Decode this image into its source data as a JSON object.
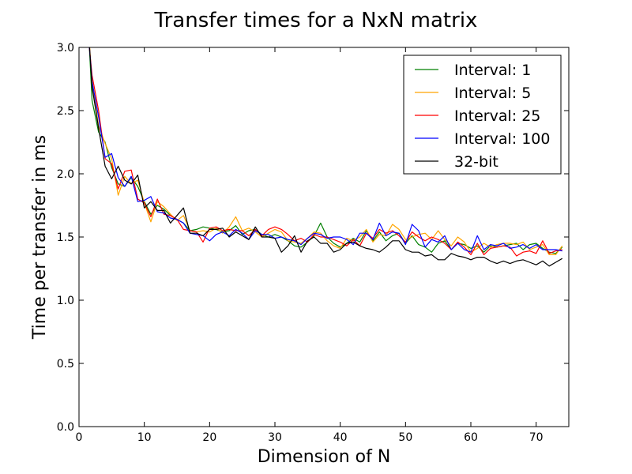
{
  "chart_data": {
    "type": "line",
    "title": "Transfer times for a NxN matrix",
    "xlabel": "Dimension of N",
    "ylabel": "Time per transfer in ms",
    "xlim": [
      0,
      75
    ],
    "ylim": [
      0.0,
      3.0
    ],
    "xticks": [
      "0",
      "10",
      "20",
      "30",
      "40",
      "50",
      "60",
      "70"
    ],
    "xtick_values": [
      0,
      10,
      20,
      30,
      40,
      50,
      60,
      70
    ],
    "yticks": [
      "0.0",
      "0.5",
      "1.0",
      "1.5",
      "2.0",
      "2.5",
      "3.0"
    ],
    "ytick_values": [
      0.0,
      0.5,
      1.0,
      1.5,
      2.0,
      2.5,
      3.0
    ],
    "grid": false,
    "legend_position": "top-right",
    "x": [
      1,
      2,
      3,
      4,
      5,
      6,
      7,
      8,
      9,
      10,
      11,
      12,
      13,
      14,
      15,
      16,
      17,
      18,
      19,
      20,
      21,
      22,
      23,
      24,
      25,
      26,
      27,
      28,
      29,
      30,
      31,
      32,
      33,
      34,
      35,
      36,
      37,
      38,
      39,
      40,
      41,
      42,
      43,
      44,
      45,
      46,
      47,
      48,
      49,
      50,
      51,
      52,
      53,
      54,
      55,
      56,
      57,
      58,
      59,
      60,
      61,
      62,
      63,
      64,
      65,
      66,
      67,
      68,
      69,
      70,
      71,
      72,
      73,
      74
    ],
    "series": [
      {
        "name": "Interval: 1",
        "color": "#008000",
        "values": [
          3.6,
          2.58,
          2.33,
          2.25,
          2.05,
          1.92,
          1.9,
          1.97,
          1.9,
          1.78,
          1.68,
          1.75,
          1.72,
          1.67,
          1.64,
          1.61,
          1.55,
          1.56,
          1.58,
          1.57,
          1.56,
          1.54,
          1.55,
          1.59,
          1.52,
          1.55,
          1.56,
          1.52,
          1.5,
          1.52,
          1.5,
          1.47,
          1.43,
          1.42,
          1.46,
          1.51,
          1.61,
          1.5,
          1.45,
          1.42,
          1.45,
          1.49,
          1.46,
          1.55,
          1.47,
          1.54,
          1.47,
          1.51,
          1.53,
          1.45,
          1.51,
          1.44,
          1.42,
          1.38,
          1.45,
          1.47,
          1.4,
          1.45,
          1.44,
          1.41,
          1.43,
          1.38,
          1.43,
          1.42,
          1.43,
          1.44,
          1.45,
          1.4,
          1.44,
          1.45,
          1.41,
          1.38,
          1.37,
          1.42
        ]
      },
      {
        "name": "Interval: 5",
        "color": "#FFA500",
        "values": [
          3.5,
          2.72,
          2.38,
          2.24,
          2.12,
          1.83,
          1.98,
          1.92,
          1.95,
          1.77,
          1.62,
          1.78,
          1.74,
          1.68,
          1.63,
          1.67,
          1.55,
          1.54,
          1.55,
          1.54,
          1.57,
          1.53,
          1.58,
          1.66,
          1.55,
          1.57,
          1.54,
          1.5,
          1.53,
          1.56,
          1.54,
          1.47,
          1.46,
          1.45,
          1.49,
          1.54,
          1.53,
          1.47,
          1.43,
          1.41,
          1.49,
          1.47,
          1.5,
          1.56,
          1.46,
          1.52,
          1.51,
          1.6,
          1.56,
          1.48,
          1.5,
          1.52,
          1.53,
          1.48,
          1.55,
          1.48,
          1.43,
          1.5,
          1.46,
          1.38,
          1.41,
          1.45,
          1.42,
          1.44,
          1.45,
          1.45,
          1.44,
          1.46,
          1.4,
          1.42,
          1.44,
          1.36,
          1.36,
          1.43
        ]
      },
      {
        "name": "Interval: 25",
        "color": "#FF0000",
        "values": [
          3.3,
          2.78,
          2.5,
          2.12,
          2.08,
          1.88,
          2.02,
          2.03,
          1.8,
          1.77,
          1.66,
          1.8,
          1.68,
          1.67,
          1.64,
          1.56,
          1.55,
          1.54,
          1.46,
          1.57,
          1.58,
          1.55,
          1.56,
          1.55,
          1.55,
          1.51,
          1.56,
          1.51,
          1.56,
          1.58,
          1.56,
          1.52,
          1.47,
          1.49,
          1.46,
          1.52,
          1.5,
          1.5,
          1.48,
          1.46,
          1.43,
          1.48,
          1.43,
          1.53,
          1.49,
          1.56,
          1.53,
          1.55,
          1.51,
          1.46,
          1.54,
          1.5,
          1.47,
          1.5,
          1.48,
          1.45,
          1.4,
          1.46,
          1.42,
          1.36,
          1.45,
          1.36,
          1.41,
          1.42,
          1.43,
          1.42,
          1.35,
          1.38,
          1.39,
          1.37,
          1.47,
          1.37,
          1.39,
          1.4
        ]
      },
      {
        "name": "Interval: 100",
        "color": "#0000FF",
        "values": [
          3.4,
          2.73,
          2.45,
          2.13,
          2.16,
          1.97,
          1.9,
          1.98,
          1.78,
          1.79,
          1.82,
          1.7,
          1.69,
          1.65,
          1.64,
          1.61,
          1.53,
          1.52,
          1.51,
          1.47,
          1.52,
          1.54,
          1.51,
          1.56,
          1.53,
          1.48,
          1.55,
          1.52,
          1.52,
          1.49,
          1.5,
          1.48,
          1.47,
          1.44,
          1.49,
          1.53,
          1.52,
          1.49,
          1.5,
          1.5,
          1.48,
          1.44,
          1.53,
          1.53,
          1.48,
          1.61,
          1.51,
          1.54,
          1.53,
          1.44,
          1.6,
          1.55,
          1.42,
          1.48,
          1.46,
          1.51,
          1.4,
          1.45,
          1.4,
          1.38,
          1.51,
          1.4,
          1.44,
          1.43,
          1.45,
          1.41,
          1.42,
          1.44,
          1.41,
          1.44,
          1.4,
          1.4,
          1.4,
          1.39
        ]
      },
      {
        "name": "32-bit",
        "color": "#000000",
        "values": [
          3.5,
          2.69,
          2.36,
          2.06,
          1.96,
          2.06,
          1.95,
          1.92,
          1.99,
          1.73,
          1.78,
          1.71,
          1.71,
          1.61,
          1.67,
          1.73,
          1.53,
          1.53,
          1.51,
          1.56,
          1.56,
          1.57,
          1.5,
          1.54,
          1.51,
          1.48,
          1.58,
          1.5,
          1.5,
          1.49,
          1.38,
          1.43,
          1.51,
          1.38,
          1.47,
          1.5,
          1.45,
          1.45,
          1.38,
          1.4,
          1.45,
          1.46,
          1.43,
          1.41,
          1.4,
          1.38,
          1.42,
          1.47,
          1.47,
          1.4,
          1.38,
          1.38,
          1.35,
          1.36,
          1.32,
          1.32,
          1.37,
          1.35,
          1.34,
          1.32,
          1.34,
          1.34,
          1.31,
          1.29,
          1.31,
          1.29,
          1.31,
          1.32,
          1.3,
          1.28,
          1.31,
          1.27,
          1.3,
          1.33
        ]
      }
    ]
  }
}
